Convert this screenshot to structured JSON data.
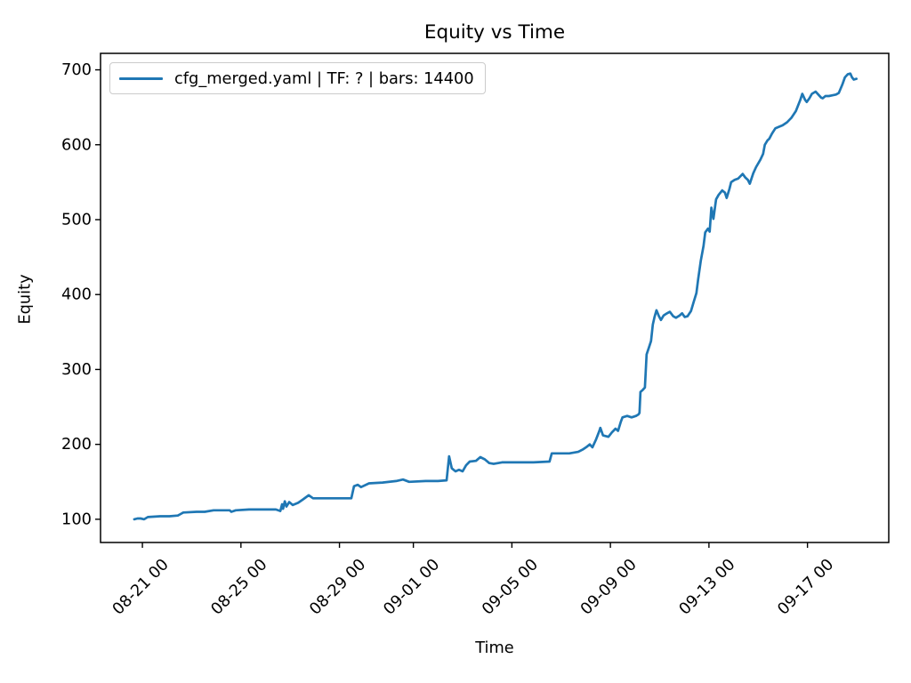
{
  "chart_data": {
    "type": "line",
    "title": "Equity vs Time",
    "xlabel": "Time",
    "ylabel": "Equity",
    "background_color": "#ffffff",
    "axes_color": "#000000",
    "grid": false,
    "x_unit": "days relative to 08-21 00:00",
    "xlim": [
      -1.7,
      30.3
    ],
    "ylim": [
      69,
      722
    ],
    "y_ticks": [
      100,
      200,
      300,
      400,
      500,
      600,
      700
    ],
    "x_ticks": [
      {
        "pos": 0,
        "label": "08-21 00"
      },
      {
        "pos": 4,
        "label": "08-25 00"
      },
      {
        "pos": 8,
        "label": "08-29 00"
      },
      {
        "pos": 11,
        "label": "09-01 00"
      },
      {
        "pos": 15,
        "label": "09-05 00"
      },
      {
        "pos": 19,
        "label": "09-09 00"
      },
      {
        "pos": 23,
        "label": "09-13 00"
      },
      {
        "pos": 27,
        "label": "09-17 00"
      }
    ],
    "legend": {
      "position": "upper left",
      "entries": [
        {
          "label": "cfg_merged.yaml | TF: ? | bars: 14400",
          "color": "#1f77b4"
        }
      ]
    },
    "series": [
      {
        "name": "cfg_merged.yaml | TF: ? | bars: 14400",
        "color": "#1f77b4",
        "points": [
          [
            -0.33,
            100
          ],
          [
            -0.2,
            101
          ],
          [
            -0.07,
            101
          ],
          [
            0.07,
            100
          ],
          [
            0.22,
            103
          ],
          [
            0.72,
            104
          ],
          [
            1.1,
            104
          ],
          [
            1.44,
            105
          ],
          [
            1.55,
            107
          ],
          [
            1.66,
            109
          ],
          [
            2.2,
            110
          ],
          [
            2.53,
            110
          ],
          [
            2.89,
            112
          ],
          [
            3.54,
            112
          ],
          [
            3.61,
            110
          ],
          [
            3.79,
            112
          ],
          [
            4.33,
            113
          ],
          [
            5.2,
            113
          ],
          [
            5.42,
            113
          ],
          [
            5.6,
            111
          ],
          [
            5.67,
            120
          ],
          [
            5.71,
            114
          ],
          [
            5.78,
            124
          ],
          [
            5.85,
            117
          ],
          [
            5.96,
            123
          ],
          [
            6.1,
            119
          ],
          [
            6.32,
            122
          ],
          [
            6.5,
            126
          ],
          [
            6.75,
            132
          ],
          [
            6.93,
            128
          ],
          [
            7.3,
            128
          ],
          [
            7.58,
            128
          ],
          [
            8.2,
            128
          ],
          [
            8.48,
            128
          ],
          [
            8.59,
            144
          ],
          [
            8.74,
            146
          ],
          [
            8.88,
            143
          ],
          [
            9.2,
            148
          ],
          [
            9.75,
            149
          ],
          [
            10.3,
            151
          ],
          [
            10.58,
            153
          ],
          [
            10.83,
            150
          ],
          [
            11.5,
            151
          ],
          [
            12.0,
            151
          ],
          [
            12.35,
            152
          ],
          [
            12.45,
            184
          ],
          [
            12.56,
            168
          ],
          [
            12.71,
            164
          ],
          [
            12.85,
            166
          ],
          [
            13.0,
            164
          ],
          [
            13.14,
            172
          ],
          [
            13.29,
            177
          ],
          [
            13.54,
            178
          ],
          [
            13.72,
            183
          ],
          [
            13.9,
            180
          ],
          [
            14.08,
            175
          ],
          [
            14.26,
            174
          ],
          [
            14.6,
            176
          ],
          [
            14.98,
            176
          ],
          [
            15.5,
            176
          ],
          [
            15.88,
            176
          ],
          [
            16.53,
            177
          ],
          [
            16.62,
            188
          ],
          [
            17.0,
            188
          ],
          [
            17.33,
            188
          ],
          [
            17.69,
            190
          ],
          [
            17.87,
            193
          ],
          [
            18.05,
            197
          ],
          [
            18.16,
            200
          ],
          [
            18.27,
            196
          ],
          [
            18.41,
            206
          ],
          [
            18.55,
            218
          ],
          [
            18.59,
            222
          ],
          [
            18.7,
            212
          ],
          [
            18.92,
            210
          ],
          [
            19.06,
            216
          ],
          [
            19.21,
            221
          ],
          [
            19.31,
            218
          ],
          [
            19.42,
            230
          ],
          [
            19.49,
            236
          ],
          [
            19.68,
            238
          ],
          [
            19.86,
            236
          ],
          [
            20.04,
            238
          ],
          [
            20.14,
            240
          ],
          [
            20.18,
            242
          ],
          [
            20.22,
            270
          ],
          [
            20.32,
            273
          ],
          [
            20.4,
            276
          ],
          [
            20.47,
            320
          ],
          [
            20.58,
            331
          ],
          [
            20.65,
            338
          ],
          [
            20.72,
            360
          ],
          [
            20.79,
            370
          ],
          [
            20.87,
            379
          ],
          [
            20.97,
            371
          ],
          [
            21.05,
            366
          ],
          [
            21.16,
            372
          ],
          [
            21.3,
            375
          ],
          [
            21.41,
            377
          ],
          [
            21.55,
            371
          ],
          [
            21.66,
            369
          ],
          [
            21.81,
            372
          ],
          [
            21.91,
            375
          ],
          [
            22.02,
            370
          ],
          [
            22.13,
            371
          ],
          [
            22.27,
            378
          ],
          [
            22.38,
            390
          ],
          [
            22.49,
            402
          ],
          [
            22.56,
            420
          ],
          [
            22.67,
            445
          ],
          [
            22.78,
            465
          ],
          [
            22.85,
            483
          ],
          [
            22.96,
            488
          ],
          [
            23.03,
            484
          ],
          [
            23.1,
            516
          ],
          [
            23.18,
            501
          ],
          [
            23.29,
            527
          ],
          [
            23.39,
            533
          ],
          [
            23.54,
            539
          ],
          [
            23.65,
            536
          ],
          [
            23.72,
            529
          ],
          [
            23.83,
            541
          ],
          [
            23.9,
            550
          ],
          [
            24.04,
            553
          ],
          [
            24.19,
            555
          ],
          [
            24.37,
            561
          ],
          [
            24.48,
            556
          ],
          [
            24.58,
            553
          ],
          [
            24.66,
            548
          ],
          [
            24.8,
            562
          ],
          [
            24.91,
            570
          ],
          [
            25.09,
            580
          ],
          [
            25.2,
            588
          ],
          [
            25.27,
            600
          ],
          [
            25.38,
            606
          ],
          [
            25.45,
            608
          ],
          [
            25.56,
            615
          ],
          [
            25.7,
            622
          ],
          [
            25.85,
            624
          ],
          [
            25.99,
            626
          ],
          [
            26.17,
            630
          ],
          [
            26.35,
            636
          ],
          [
            26.53,
            645
          ],
          [
            26.71,
            660
          ],
          [
            26.79,
            668
          ],
          [
            26.9,
            660
          ],
          [
            26.97,
            657
          ],
          [
            27.08,
            662
          ],
          [
            27.18,
            668
          ],
          [
            27.33,
            671
          ],
          [
            27.44,
            667
          ],
          [
            27.55,
            663
          ],
          [
            27.62,
            662
          ],
          [
            27.73,
            665
          ],
          [
            27.87,
            665
          ],
          [
            28.01,
            666
          ],
          [
            28.16,
            667
          ],
          [
            28.27,
            669
          ],
          [
            28.41,
            680
          ],
          [
            28.52,
            690
          ],
          [
            28.63,
            694
          ],
          [
            28.74,
            695
          ],
          [
            28.81,
            690
          ],
          [
            28.88,
            687
          ],
          [
            28.99,
            688
          ]
        ]
      }
    ]
  }
}
